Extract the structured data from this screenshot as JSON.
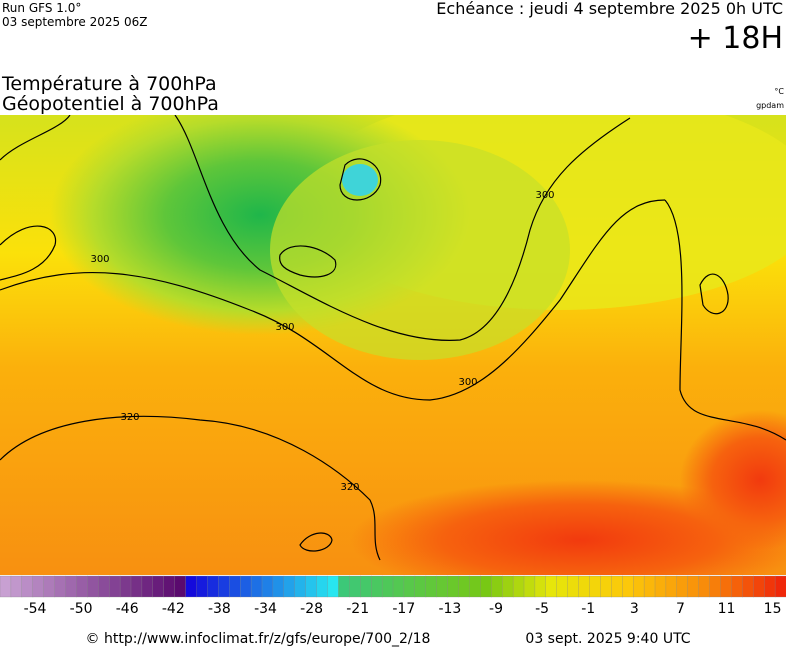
{
  "header": {
    "run": "Run GFS 1.0°",
    "run_date": "03 septembre 2025 06Z",
    "valid": "Echéance : jeudi 4 septembre 2025 0h UTC",
    "lead": "+ 18H",
    "title_1": "Température à 700hPa",
    "title_2": "Géopotentiel à 700hPa",
    "unit_1": "°C",
    "unit_2": "gpdam"
  },
  "map": {
    "contour_labels": [
      "300",
      "300",
      "300",
      "300",
      "320",
      "320"
    ]
  },
  "scale": {
    "labels": [
      -54,
      -50,
      -46,
      -42,
      -38,
      -34,
      -28,
      -21,
      -17,
      -13,
      -9,
      -5,
      -1,
      3,
      7,
      11,
      15
    ]
  },
  "footer": {
    "source": "© http://www.infoclimat.fr/z/gfs/europe/700_2/18",
    "generated": "03 sept. 2025  9:40 UTC"
  }
}
